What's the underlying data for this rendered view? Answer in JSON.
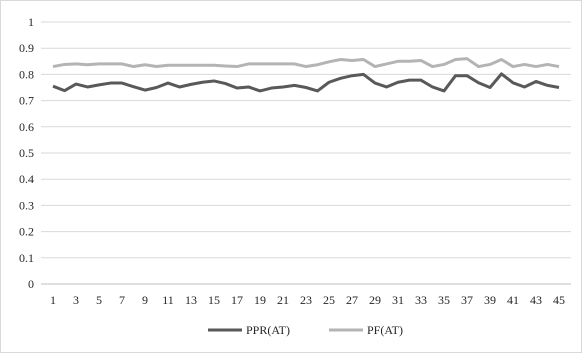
{
  "chart_data": {
    "type": "line",
    "title": "",
    "xlabel": "",
    "ylabel": "",
    "x": [
      1,
      2,
      3,
      4,
      5,
      6,
      7,
      8,
      9,
      10,
      11,
      12,
      13,
      14,
      15,
      16,
      17,
      18,
      19,
      20,
      21,
      22,
      23,
      24,
      25,
      26,
      27,
      28,
      29,
      30,
      31,
      32,
      33,
      34,
      35,
      36,
      37,
      38,
      39,
      40,
      41,
      42,
      43,
      44,
      45
    ],
    "xtick_labels": [
      "1",
      "3",
      "5",
      "7",
      "9",
      "11",
      "13",
      "15",
      "17",
      "19",
      "21",
      "23",
      "25",
      "27",
      "29",
      "31",
      "33",
      "35",
      "37",
      "39",
      "41",
      "43",
      "45"
    ],
    "ytick_labels": [
      "0",
      "0.1",
      "0.2",
      "0.3",
      "0.4",
      "0.5",
      "0.6",
      "0.7",
      "0.8",
      "0.9",
      "1"
    ],
    "ylim": [
      0,
      1
    ],
    "grid": "horizontal",
    "legend_position": "bottom",
    "series": [
      {
        "name": "PPR(AT)",
        "color": "#595959",
        "values": [
          0.755,
          0.738,
          0.763,
          0.752,
          0.76,
          0.767,
          0.767,
          0.753,
          0.74,
          0.75,
          0.767,
          0.752,
          0.762,
          0.77,
          0.775,
          0.765,
          0.748,
          0.752,
          0.737,
          0.748,
          0.752,
          0.758,
          0.75,
          0.737,
          0.77,
          0.785,
          0.795,
          0.8,
          0.767,
          0.752,
          0.77,
          0.778,
          0.778,
          0.752,
          0.737,
          0.795,
          0.795,
          0.768,
          0.75,
          0.802,
          0.768,
          0.752,
          0.773,
          0.758,
          0.75
        ]
      },
      {
        "name": "PF(AT)",
        "color": "#b4b4b4",
        "values": [
          0.83,
          0.838,
          0.84,
          0.837,
          0.84,
          0.84,
          0.84,
          0.83,
          0.837,
          0.83,
          0.835,
          0.835,
          0.835,
          0.835,
          0.835,
          0.832,
          0.83,
          0.84,
          0.84,
          0.84,
          0.84,
          0.84,
          0.83,
          0.837,
          0.848,
          0.857,
          0.853,
          0.857,
          0.83,
          0.84,
          0.85,
          0.85,
          0.853,
          0.83,
          0.838,
          0.857,
          0.86,
          0.83,
          0.838,
          0.857,
          0.83,
          0.838,
          0.83,
          0.838,
          0.83
        ]
      }
    ]
  }
}
